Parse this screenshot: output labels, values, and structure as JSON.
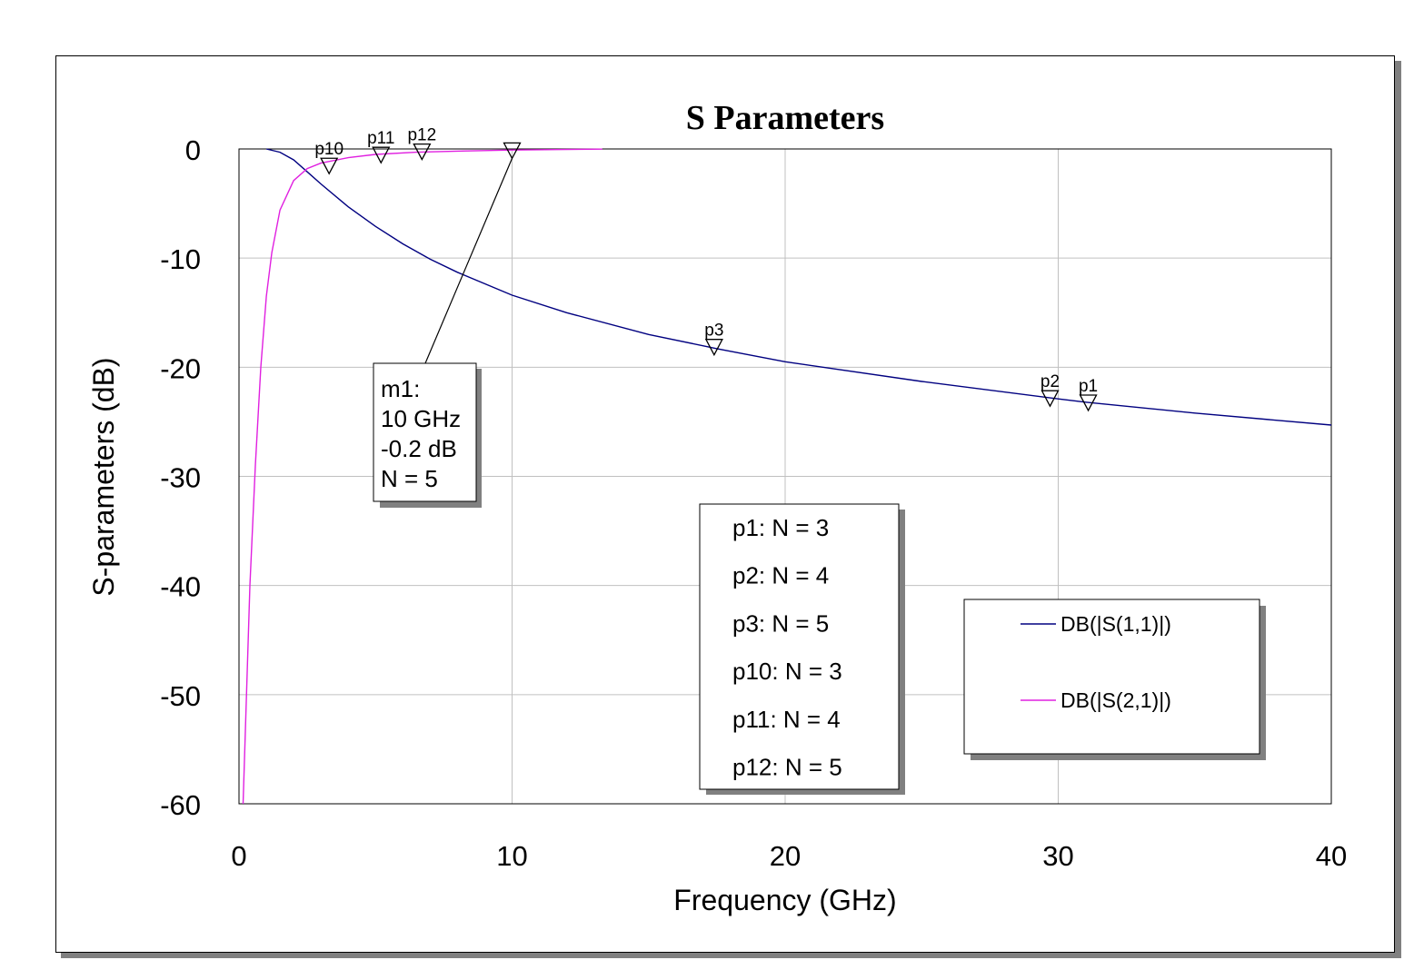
{
  "chart_data": {
    "type": "line",
    "title": "S Parameters",
    "xlabel": "Frequency (GHz)",
    "ylabel": "S-parameters (dB)",
    "xlim": [
      0,
      40
    ],
    "ylim": [
      -60,
      0
    ],
    "xticks": [
      0,
      10,
      20,
      30,
      40
    ],
    "yticks": [
      0,
      -10,
      -20,
      -30,
      -40,
      -50,
      -60
    ],
    "grid": true,
    "legend_position": "bottom-right",
    "series": [
      {
        "name": "DB(|S(1,1)|)",
        "color": "#000080",
        "x": [
          1.0,
          1.5,
          2.0,
          2.5,
          3.0,
          4.0,
          5.0,
          6.0,
          7.0,
          8.0,
          10.0,
          12.0,
          15.0,
          17.5,
          20.0,
          25.0,
          30.0,
          31.0,
          35.0,
          40.0
        ],
        "y": [
          0,
          -0.3,
          -1.0,
          -2.1,
          -3.2,
          -5.3,
          -7.1,
          -8.7,
          -10.1,
          -11.3,
          -13.4,
          -15.0,
          -17.0,
          -18.3,
          -19.5,
          -21.3,
          -22.9,
          -23.2,
          -24.2,
          -25.3
        ]
      },
      {
        "name": "DB(|S(2,1)|)",
        "color": "#e020e0",
        "x": [
          0.15,
          0.25,
          0.4,
          0.6,
          0.8,
          1.0,
          1.2,
          1.5,
          2.0,
          2.5,
          3.0,
          4.0,
          5.0,
          6.5,
          8.0,
          10.0,
          12.0,
          13.3
        ],
        "y": [
          -60,
          -52,
          -40,
          -29,
          -20,
          -13.5,
          -9.5,
          -5.6,
          -2.9,
          -1.8,
          -1.3,
          -0.8,
          -0.5,
          -0.3,
          -0.2,
          -0.1,
          -0.05,
          -0.02
        ]
      }
    ],
    "markers": [
      {
        "label": "p1",
        "x": 31.1,
        "y": -23.3
      },
      {
        "label": "p2",
        "x": 29.7,
        "y": -22.9
      },
      {
        "label": "p3",
        "x": 17.4,
        "y": -18.2
      },
      {
        "label": "p10",
        "x": 3.3,
        "y": -1.6
      },
      {
        "label": "p11",
        "x": 5.2,
        "y": -0.6
      },
      {
        "label": "p12",
        "x": 6.7,
        "y": -0.3
      },
      {
        "label": "m1",
        "x": 10,
        "y": -0.2
      }
    ],
    "annotation_m1": [
      "m1:",
      "10 GHz",
      "-0.2 dB",
      "N = 5"
    ],
    "marker_info": [
      "p1: N = 3",
      "p2: N = 4",
      "p3: N = 5",
      "p10: N = 3",
      "p11: N = 4",
      "p12: N = 5"
    ]
  }
}
